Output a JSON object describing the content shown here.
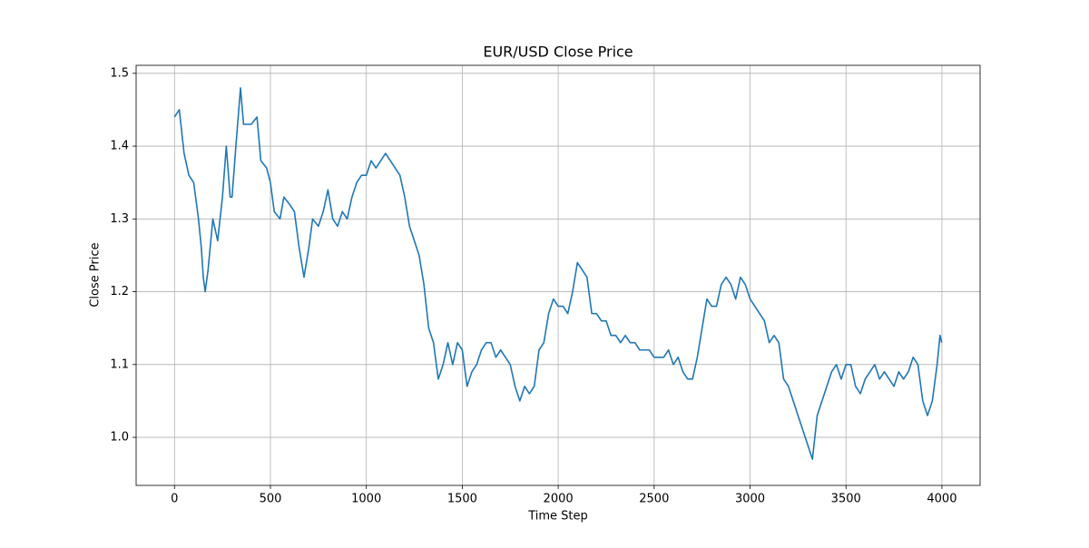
{
  "chart_data": {
    "type": "line",
    "title": "EUR/USD Close Price",
    "xlabel": "Time Step",
    "ylabel": "Close Price",
    "x": [
      0,
      25,
      50,
      75,
      100,
      125,
      140,
      150,
      160,
      175,
      200,
      225,
      250,
      270,
      290,
      300,
      320,
      344,
      360,
      400,
      430,
      450,
      480,
      500,
      520,
      550,
      570,
      600,
      625,
      650,
      675,
      700,
      720,
      750,
      775,
      800,
      825,
      850,
      875,
      900,
      925,
      950,
      975,
      1000,
      1025,
      1050,
      1075,
      1100,
      1125,
      1150,
      1175,
      1200,
      1225,
      1250,
      1275,
      1300,
      1325,
      1350,
      1375,
      1400,
      1425,
      1450,
      1475,
      1500,
      1525,
      1550,
      1575,
      1600,
      1625,
      1650,
      1675,
      1700,
      1725,
      1750,
      1775,
      1800,
      1825,
      1850,
      1875,
      1900,
      1925,
      1950,
      1975,
      2000,
      2025,
      2050,
      2075,
      2100,
      2125,
      2150,
      2175,
      2200,
      2225,
      2250,
      2275,
      2300,
      2325,
      2350,
      2375,
      2400,
      2425,
      2450,
      2475,
      2500,
      2525,
      2550,
      2575,
      2600,
      2625,
      2650,
      2675,
      2700,
      2725,
      2750,
      2775,
      2800,
      2825,
      2850,
      2875,
      2900,
      2925,
      2950,
      2975,
      3000,
      3025,
      3050,
      3075,
      3100,
      3125,
      3150,
      3175,
      3200,
      3225,
      3250,
      3275,
      3300,
      3325,
      3350,
      3375,
      3400,
      3425,
      3450,
      3475,
      3500,
      3525,
      3550,
      3575,
      3600,
      3625,
      3650,
      3675,
      3700,
      3725,
      3750,
      3775,
      3800,
      3825,
      3850,
      3875,
      3900,
      3925,
      3950,
      3975,
      3990,
      3999
    ],
    "values": [
      1.44,
      1.45,
      1.39,
      1.36,
      1.35,
      1.3,
      1.26,
      1.22,
      1.2,
      1.23,
      1.3,
      1.27,
      1.33,
      1.4,
      1.33,
      1.33,
      1.4,
      1.48,
      1.43,
      1.43,
      1.44,
      1.38,
      1.37,
      1.35,
      1.31,
      1.3,
      1.33,
      1.32,
      1.31,
      1.26,
      1.22,
      1.26,
      1.3,
      1.29,
      1.31,
      1.34,
      1.3,
      1.29,
      1.31,
      1.3,
      1.33,
      1.35,
      1.36,
      1.36,
      1.38,
      1.37,
      1.38,
      1.39,
      1.38,
      1.37,
      1.36,
      1.33,
      1.29,
      1.27,
      1.25,
      1.21,
      1.15,
      1.13,
      1.08,
      1.1,
      1.13,
      1.1,
      1.13,
      1.12,
      1.07,
      1.09,
      1.1,
      1.12,
      1.13,
      1.13,
      1.11,
      1.12,
      1.11,
      1.1,
      1.07,
      1.05,
      1.07,
      1.06,
      1.07,
      1.12,
      1.13,
      1.17,
      1.19,
      1.18,
      1.18,
      1.17,
      1.2,
      1.24,
      1.23,
      1.22,
      1.17,
      1.17,
      1.16,
      1.16,
      1.14,
      1.14,
      1.13,
      1.14,
      1.13,
      1.13,
      1.12,
      1.12,
      1.12,
      1.11,
      1.11,
      1.11,
      1.12,
      1.1,
      1.11,
      1.09,
      1.08,
      1.08,
      1.11,
      1.15,
      1.19,
      1.18,
      1.18,
      1.21,
      1.22,
      1.21,
      1.19,
      1.22,
      1.21,
      1.19,
      1.18,
      1.17,
      1.16,
      1.13,
      1.14,
      1.13,
      1.08,
      1.07,
      1.05,
      1.03,
      1.01,
      0.99,
      0.97,
      1.03,
      1.05,
      1.07,
      1.09,
      1.1,
      1.08,
      1.1,
      1.1,
      1.07,
      1.06,
      1.08,
      1.09,
      1.1,
      1.08,
      1.09,
      1.08,
      1.07,
      1.09,
      1.08,
      1.09,
      1.11,
      1.1,
      1.05,
      1.03,
      1.05,
      1.1,
      1.14,
      1.13
    ],
    "color": "#1f77b4",
    "xlim": [
      -200,
      4199
    ],
    "xticks": [
      0,
      500,
      1000,
      1500,
      2000,
      2500,
      3000,
      3500,
      4000
    ],
    "ylim": [
      0.934,
      1.511
    ],
    "yticks": [
      {
        "value": 1,
        "label": "1.0"
      },
      1.1,
      1.2,
      1.3,
      1.4,
      1.5
    ],
    "grid": true
  }
}
